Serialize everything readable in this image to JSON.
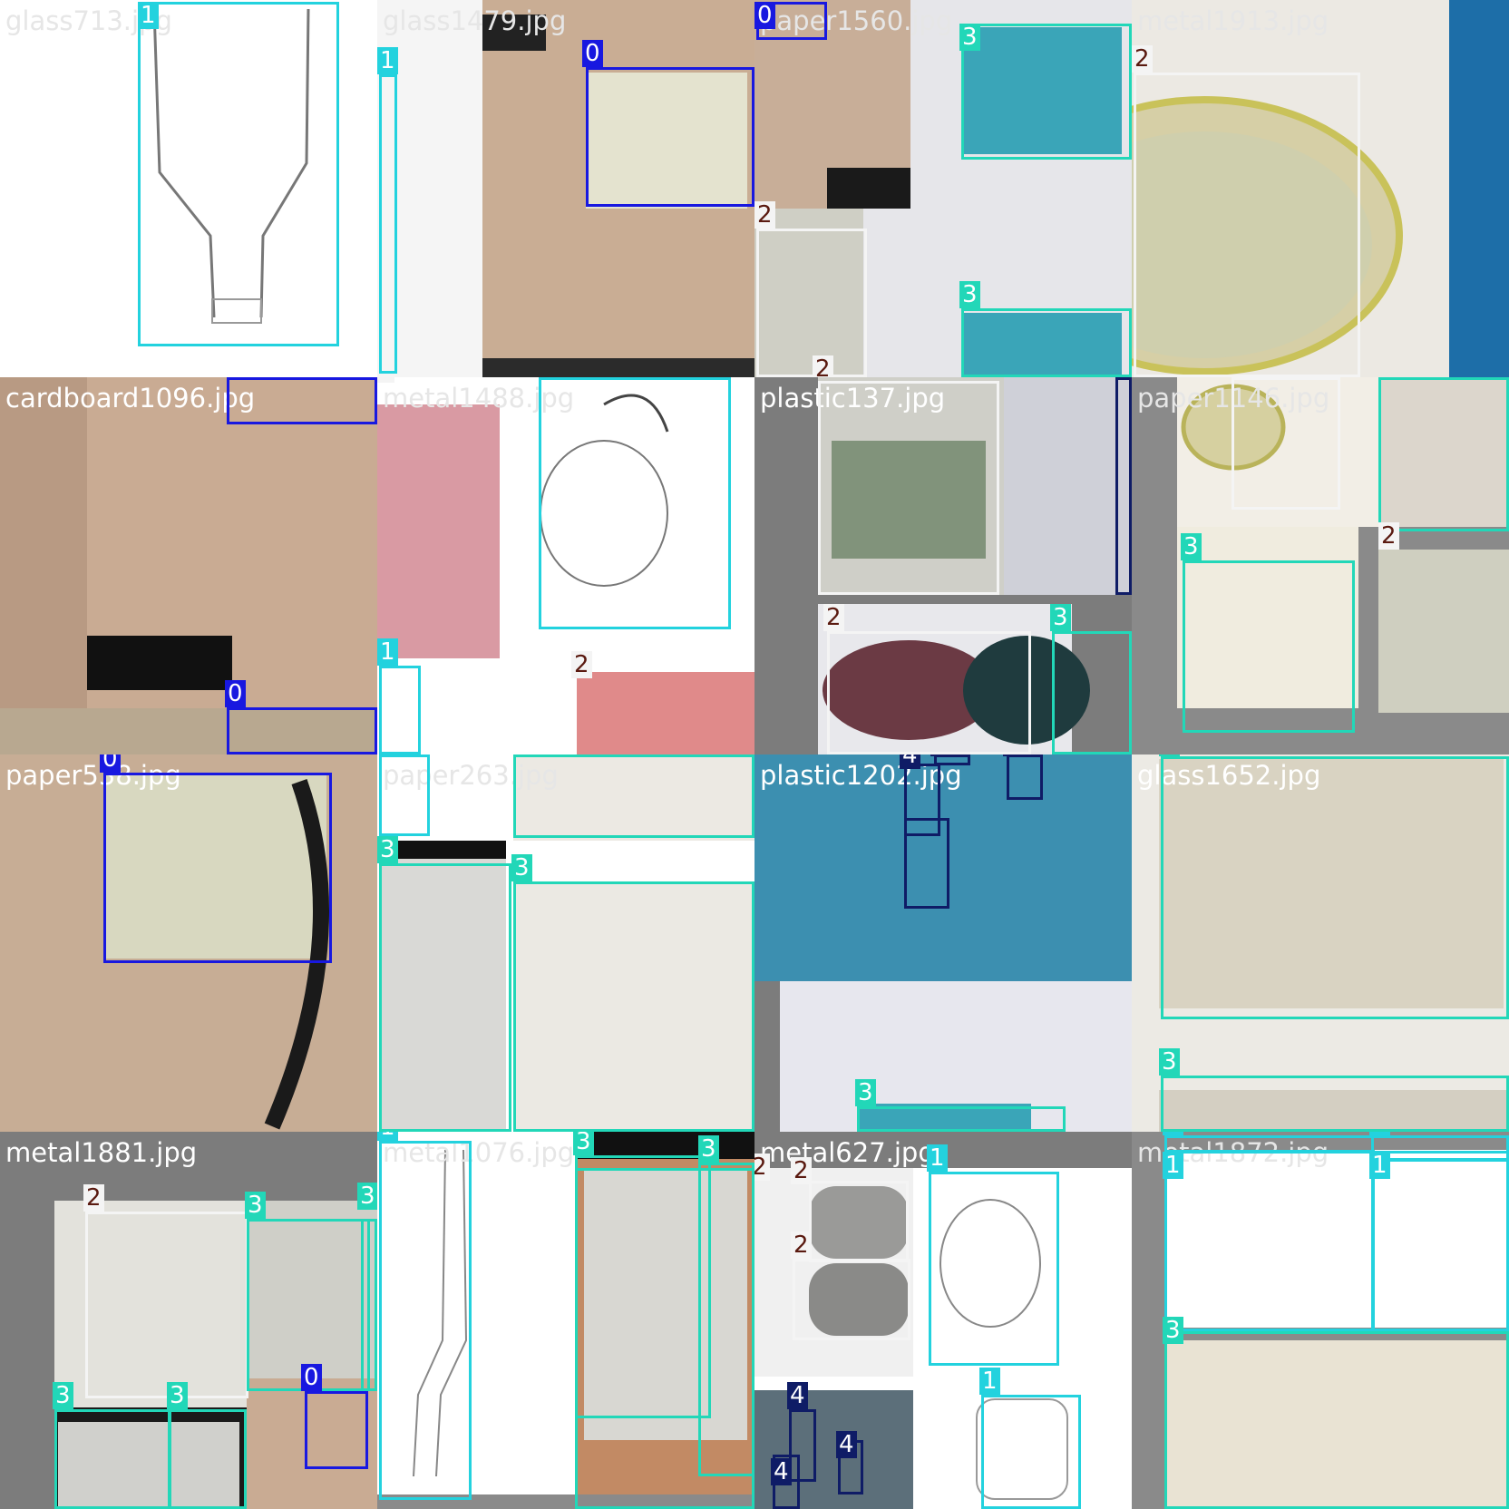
{
  "tiles": [
    {
      "filename": "glass713.jpg"
    },
    {
      "filename": "glass1479.jpg"
    },
    {
      "filename": "paper1560.jpg"
    },
    {
      "filename": "metal1913.jpg"
    },
    {
      "filename": "cardboard1096.jpg"
    },
    {
      "filename": "metal1488.jpg"
    },
    {
      "filename": "plastic137.jpg"
    },
    {
      "filename": "paper1146.jpg"
    },
    {
      "filename": "paper538.jpg"
    },
    {
      "filename": "paper263.jpg"
    },
    {
      "filename": "plastic1202.jpg"
    },
    {
      "filename": "glass1652.jpg"
    },
    {
      "filename": "metal1881.jpg"
    },
    {
      "filename": "metal1076.jpg"
    },
    {
      "filename": "metal627.jpg"
    },
    {
      "filename": "metal1872.jpg"
    }
  ],
  "class_labels": [
    "0",
    "1",
    "2",
    "3",
    "4"
  ],
  "class_colors": {
    "0": "#1818e0",
    "1": "#23d2de",
    "2": "#f4f4f4",
    "3": "#22d7b8",
    "4": "#0f1c66"
  }
}
